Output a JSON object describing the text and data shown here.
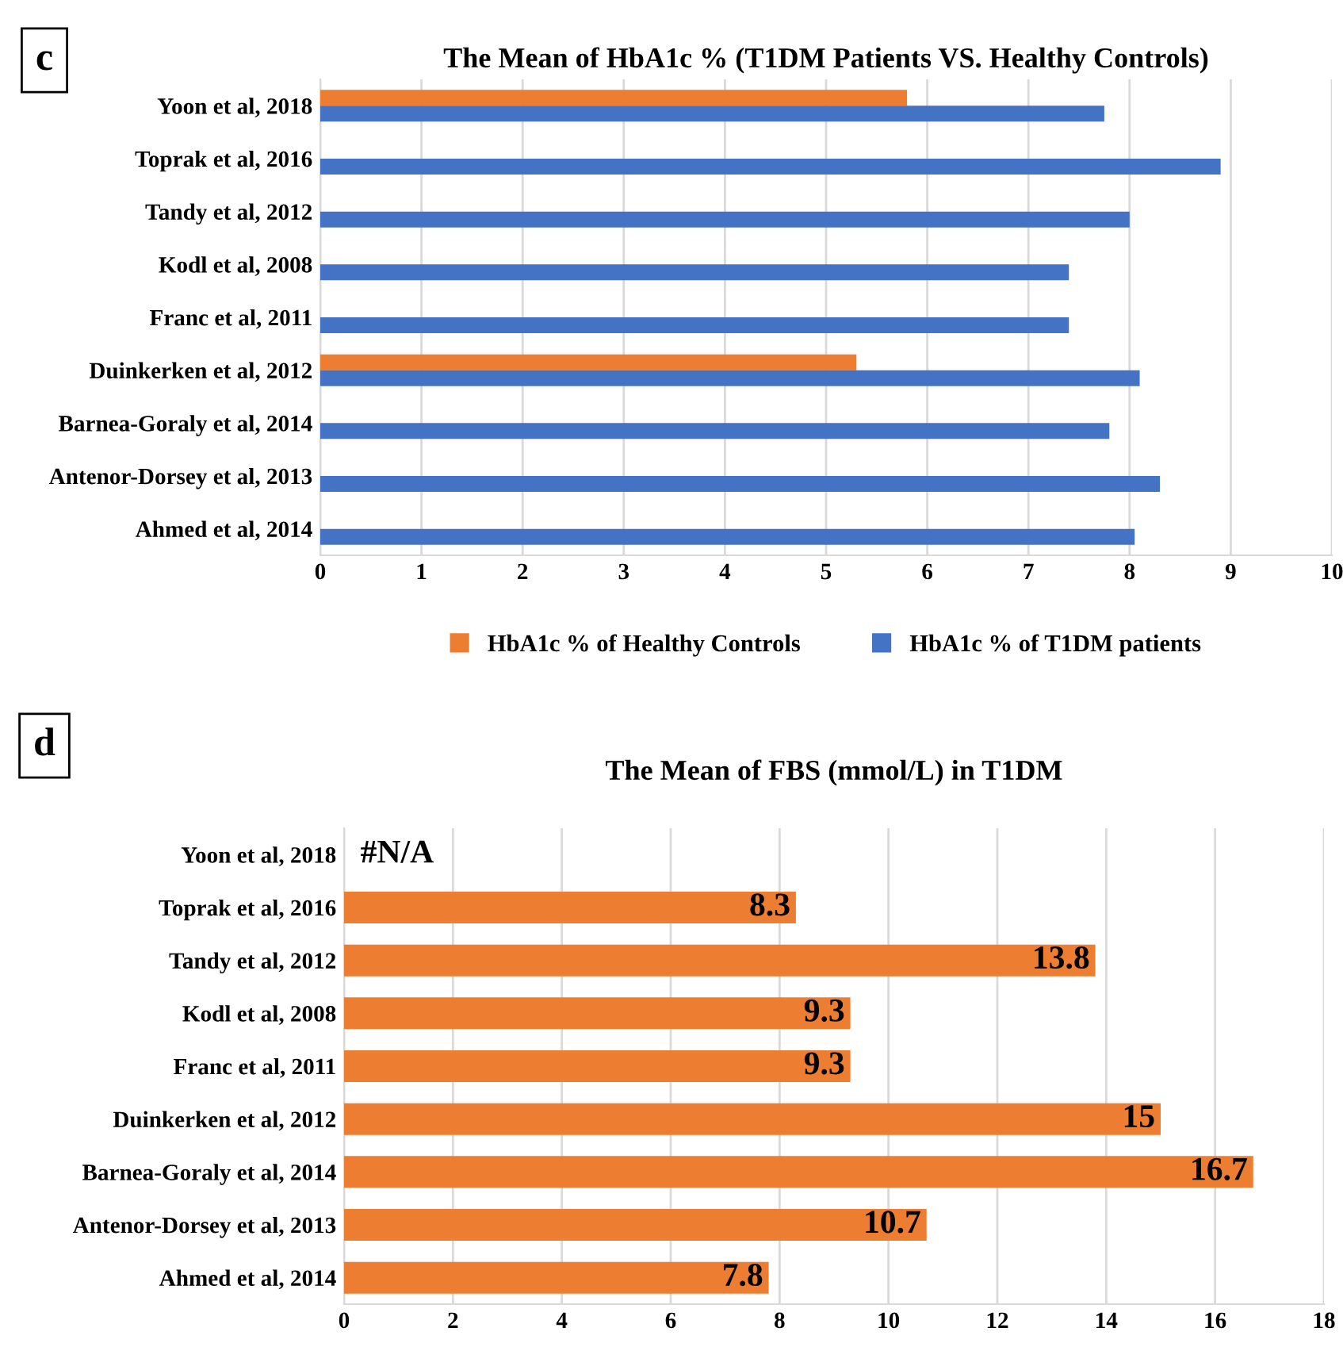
{
  "chart_data": [
    {
      "type": "bar",
      "orientation": "horizontal",
      "title": "The Mean of HbA1c % (T1DM Patients VS. Healthy Controls)",
      "annotations": [
        "c"
      ],
      "categories": [
        "Yoon et al, 2018",
        "Toprak et al, 2016",
        "Tandy et al, 2012",
        "Kodl et al, 2008",
        "Franc et al, 2011",
        "Duinkerken et al, 2012",
        "Barnea-Goraly et al, 2014",
        "Antenor-Dorsey et al, 2013",
        "Ahmed et al, 2014"
      ],
      "series": [
        {
          "name": "HbA1c % of Healthy Controls",
          "color": "#ed7d31",
          "values": [
            5.8,
            null,
            null,
            null,
            null,
            5.3,
            null,
            null,
            null
          ]
        },
        {
          "name": "HbA1c % of T1DM patients",
          "color": "#4472c4",
          "values": [
            7.75,
            8.9,
            8.0,
            7.4,
            7.4,
            8.1,
            7.8,
            8.3,
            8.05
          ]
        }
      ],
      "xlim": [
        0,
        10
      ],
      "xticks": [
        0,
        1,
        2,
        3,
        4,
        5,
        6,
        7,
        8,
        9,
        10
      ],
      "grid": "x",
      "legend": "bottom"
    },
    {
      "type": "bar",
      "orientation": "horizontal",
      "title": "The Mean of FBS (mmol/L) in T1DM",
      "annotations": [
        "d"
      ],
      "categories": [
        "Yoon et al, 2018",
        "Toprak et al, 2016",
        "Tandy et al, 2012",
        "Kodl et al, 2008",
        "Franc et al, 2011",
        "Duinkerken et al, 2012",
        "Barnea-Goraly et al, 2014",
        "Antenor-Dorsey et al, 2013",
        "Ahmed et al, 2014"
      ],
      "series": [
        {
          "color": "#ed7d31",
          "values": [
            null,
            8.3,
            13.8,
            9.3,
            9.3,
            15,
            16.7,
            10.7,
            7.8
          ],
          "value_labels": [
            "#N/A",
            "8.3",
            "13.8",
            "9.3",
            "9.3",
            "15",
            "16.7",
            "10.7",
            "7.8"
          ]
        }
      ],
      "xlim": [
        0,
        18
      ],
      "xticks": [
        0,
        2,
        4,
        6,
        8,
        10,
        12,
        14,
        16,
        18
      ],
      "grid": "x"
    }
  ]
}
